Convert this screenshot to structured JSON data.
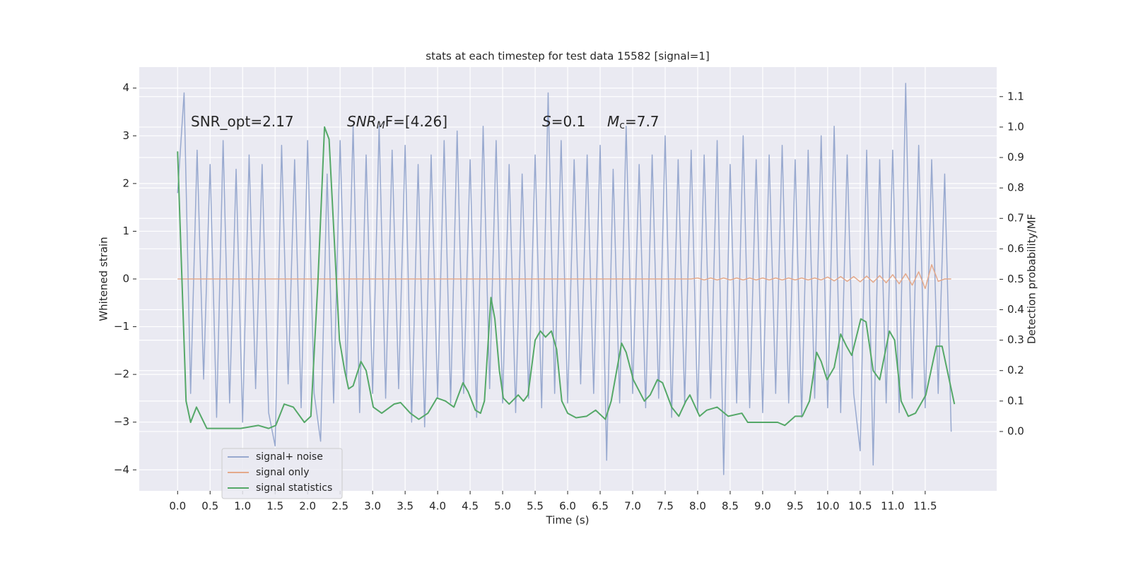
{
  "chart_data": {
    "type": "line",
    "title": "stats at each timestep for test data 15582 [signal=1]",
    "xlabel": "Time (s)",
    "ylabel": "Whitened strain",
    "y2label": "Detection probability/MF",
    "xlim": [
      -0.59,
      12.6
    ],
    "ylim": [
      -4.44,
      4.44
    ],
    "y2lim": [
      -0.195,
      1.197
    ],
    "xticks": [
      {
        "value": 0,
        "label": "0.0"
      },
      0.5,
      {
        "value": 1,
        "label": "1.0"
      },
      1.5,
      {
        "value": 2,
        "label": "2.0"
      },
      2.5,
      {
        "value": 3,
        "label": "3.0"
      },
      3.5,
      {
        "value": 4,
        "label": "4.0"
      },
      4.5,
      {
        "value": 5,
        "label": "5.0"
      },
      5.5,
      {
        "value": 6,
        "label": "6.0"
      },
      6.5,
      {
        "value": 7,
        "label": "7.0"
      },
      7.5,
      {
        "value": 8,
        "label": "8.0"
      },
      8.5,
      {
        "value": 9,
        "label": "9.0"
      },
      9.5,
      {
        "value": 10,
        "label": "10.0"
      },
      10.5,
      {
        "value": 11,
        "label": "11.0"
      },
      11.5
    ],
    "yticks": [
      {
        "value": -4,
        "label": "−4"
      },
      {
        "value": -3,
        "label": "−3"
      },
      {
        "value": -2,
        "label": "−2"
      },
      {
        "value": -1,
        "label": "−1"
      },
      0,
      1,
      2,
      3,
      4
    ],
    "y2ticks": [
      {
        "value": 0,
        "label": "0.0"
      },
      0.1,
      0.2,
      0.3,
      0.4,
      0.5,
      0.6,
      0.7,
      0.8,
      0.9,
      {
        "value": 1,
        "label": "1.0"
      },
      1.1
    ],
    "grid": true,
    "legend": "lower left",
    "annotations": [
      {
        "parts": [
          "SNR_opt=2.17"
        ]
      },
      {
        "parts": [
          "SNR",
          "M",
          "F=[4.26]"
        ]
      },
      {
        "parts": [
          "S",
          "=0.1"
        ]
      },
      {
        "parts": [
          "M",
          "c",
          "=7.7"
        ]
      }
    ],
    "x": [
      0,
      0.1,
      0.2,
      0.3,
      0.4,
      0.5,
      0.6,
      0.7,
      0.8,
      0.9,
      1,
      1.1,
      1.2,
      1.3,
      1.4,
      1.5,
      1.6,
      1.7,
      1.8,
      1.9,
      2,
      2.1,
      2.2,
      2.3,
      2.4,
      2.5,
      2.6,
      2.7,
      2.8,
      2.9,
      3,
      3.1,
      3.2,
      3.3,
      3.4,
      3.5,
      3.6,
      3.7,
      3.8,
      3.9,
      4,
      4.1,
      4.2,
      4.3,
      4.4,
      4.5,
      4.6,
      4.7,
      4.8,
      4.9,
      5,
      5.1,
      5.2,
      5.3,
      5.4,
      5.5,
      5.6,
      5.7,
      5.8,
      5.9,
      6,
      6.1,
      6.2,
      6.3,
      6.4,
      6.5,
      6.6,
      6.7,
      6.8,
      6.9,
      7,
      7.1,
      7.2,
      7.3,
      7.4,
      7.5,
      7.6,
      7.7,
      7.8,
      7.9,
      8,
      8.1,
      8.2,
      8.3,
      8.4,
      8.5,
      8.6,
      8.7,
      8.8,
      8.9,
      9,
      9.1,
      9.2,
      9.3,
      9.4,
      9.5,
      9.6,
      9.7,
      9.8,
      9.9,
      10,
      10.1,
      10.2,
      10.3,
      10.4,
      10.5,
      10.6,
      10.7,
      10.8,
      10.9,
      11,
      11.1,
      11.2,
      11.3,
      11.4,
      11.5,
      11.6,
      11.7,
      11.8,
      11.9
    ],
    "series": [
      {
        "name": "signal+ noise",
        "color": "#98a9cf",
        "values": [
          1.8,
          3.9,
          -2.4,
          2.7,
          -2.1,
          2.4,
          -2.9,
          2.9,
          -2.6,
          2.3,
          -3.0,
          2.6,
          -2.3,
          2.4,
          -2.8,
          -3.5,
          2.8,
          -2.2,
          2.5,
          -2.7,
          2.9,
          -2.4,
          -3.4,
          2.2,
          -2.6,
          2.9,
          -2.1,
          3.2,
          -2.8,
          2.6,
          -2.4,
          3.2,
          -2.5,
          2.7,
          -2.3,
          2.8,
          -3.0,
          2.4,
          -3.1,
          2.6,
          -2.5,
          2.9,
          -2.6,
          3.1,
          -2.4,
          2.5,
          -2.9,
          3.2,
          -2.3,
          2.9,
          -2.6,
          2.4,
          -2.8,
          2.2,
          -2.5,
          2.6,
          -2.7,
          3.9,
          -2.4,
          2.9,
          -2.6,
          2.5,
          -2.2,
          2.6,
          -2.4,
          2.8,
          -3.8,
          2.3,
          -2.6,
          3.2,
          -2.4,
          2.4,
          -2.7,
          2.6,
          -2.5,
          3.0,
          -2.9,
          2.5,
          -2.6,
          2.7,
          -2.8,
          2.6,
          -2.5,
          2.9,
          -4.1,
          2.4,
          -2.6,
          3.0,
          -2.7,
          2.5,
          -2.8,
          2.6,
          -2.4,
          2.8,
          -2.6,
          2.5,
          -2.9,
          2.7,
          -2.5,
          3.0,
          -2.7,
          3.2,
          -2.8,
          2.6,
          -2.4,
          -3.6,
          2.7,
          -3.9,
          2.5,
          -2.6,
          2.7,
          -2.8,
          4.1,
          -2.5,
          2.8,
          -2.7,
          2.5,
          -2.4,
          2.2,
          -3.2
        ]
      },
      {
        "name": "signal only",
        "color": "#e4a98b",
        "values": [
          0,
          0,
          0,
          0,
          0,
          0,
          0,
          0,
          0,
          0,
          0,
          0,
          0,
          0,
          0,
          0,
          0,
          0,
          0,
          0,
          0,
          0,
          0,
          0,
          0,
          0,
          0,
          0,
          0,
          0,
          0,
          0,
          0,
          0,
          0,
          0,
          0,
          0,
          0,
          0,
          0,
          0,
          0,
          0,
          0,
          0,
          0,
          0,
          0,
          0,
          0,
          0,
          0,
          0,
          0,
          0,
          0,
          0,
          0,
          0,
          0,
          0,
          0,
          0,
          0,
          0,
          0,
          0,
          0,
          0,
          0,
          0,
          0,
          0,
          0,
          0,
          0,
          0,
          0,
          0,
          0.02,
          -0.02,
          0.02,
          -0.02,
          0.02,
          -0.02,
          0.02,
          -0.02,
          0.02,
          -0.02,
          0.02,
          -0.02,
          0.02,
          -0.02,
          0.02,
          -0.02,
          0.02,
          -0.02,
          0.02,
          -0.02,
          0.04,
          -0.04,
          0.05,
          -0.05,
          0.05,
          -0.06,
          0.06,
          -0.07,
          0.07,
          -0.08,
          0.09,
          -0.1,
          0.11,
          -0.13,
          0.15,
          -0.2,
          0.3,
          -0.05,
          0,
          0
        ]
      },
      {
        "name": "signal statistics",
        "color": "#55a868",
        "axis": "y2",
        "x": [
          0,
          0.13,
          0.2,
          0.29,
          0.45,
          0.64,
          0.97,
          1.24,
          1.4,
          1.51,
          1.64,
          1.78,
          1.95,
          2.05,
          2.16,
          2.26,
          2.33,
          2.49,
          2.57,
          2.63,
          2.7,
          2.82,
          2.9,
          3.01,
          3.14,
          3.33,
          3.43,
          3.58,
          3.71,
          3.85,
          3.99,
          4.12,
          4.25,
          4.39,
          4.47,
          4.58,
          4.66,
          4.72,
          4.82,
          4.88,
          4.95,
          5.01,
          5.1,
          5.24,
          5.32,
          5.39,
          5.5,
          5.58,
          5.66,
          5.75,
          5.83,
          5.91,
          6.0,
          6.13,
          6.29,
          6.43,
          6.58,
          6.67,
          6.83,
          6.9,
          7.01,
          7.18,
          7.27,
          7.38,
          7.46,
          7.6,
          7.71,
          7.82,
          7.88,
          8.03,
          8.14,
          8.3,
          8.47,
          8.68,
          8.77,
          9.01,
          9.23,
          9.34,
          9.5,
          9.61,
          9.72,
          9.83,
          9.9,
          9.99,
          10.1,
          10.2,
          10.29,
          10.37,
          10.51,
          10.59,
          10.7,
          10.8,
          10.95,
          11.03,
          11.13,
          11.24,
          11.35,
          11.51,
          11.67,
          11.76,
          11.84,
          11.95
        ],
        "values": [
          0.92,
          0.1,
          0.03,
          0.08,
          0.01,
          0.01,
          0.01,
          0.02,
          0.01,
          0.02,
          0.09,
          0.08,
          0.03,
          0.05,
          0.5,
          1.0,
          0.96,
          0.3,
          0.2,
          0.14,
          0.15,
          0.23,
          0.2,
          0.08,
          0.06,
          0.09,
          0.095,
          0.06,
          0.04,
          0.06,
          0.11,
          0.1,
          0.08,
          0.16,
          0.13,
          0.07,
          0.06,
          0.1,
          0.44,
          0.37,
          0.2,
          0.11,
          0.09,
          0.12,
          0.1,
          0.12,
          0.3,
          0.33,
          0.31,
          0.33,
          0.27,
          0.1,
          0.06,
          0.045,
          0.05,
          0.07,
          0.04,
          0.1,
          0.29,
          0.26,
          0.17,
          0.1,
          0.12,
          0.17,
          0.16,
          0.08,
          0.05,
          0.1,
          0.12,
          0.05,
          0.07,
          0.08,
          0.05,
          0.06,
          0.03,
          0.03,
          0.03,
          0.02,
          0.05,
          0.05,
          0.1,
          0.26,
          0.23,
          0.17,
          0.21,
          0.32,
          0.28,
          0.25,
          0.37,
          0.36,
          0.2,
          0.17,
          0.33,
          0.3,
          0.1,
          0.05,
          0.06,
          0.12,
          0.28,
          0.28,
          0.2,
          0.09
        ]
      }
    ]
  }
}
